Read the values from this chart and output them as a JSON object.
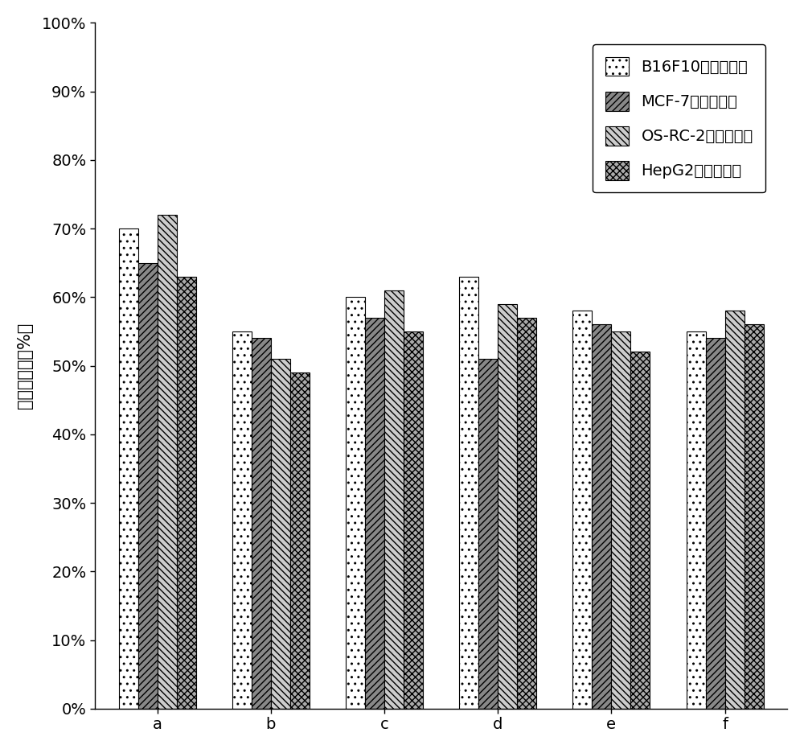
{
  "categories": [
    "a",
    "b",
    "c",
    "d",
    "e",
    "f"
  ],
  "series": [
    {
      "label": "B16F10细胞存活率",
      "values": [
        0.7,
        0.55,
        0.6,
        0.63,
        0.58,
        0.55
      ],
      "hatch": "..",
      "facecolor": "white",
      "edgecolor": "black"
    },
    {
      "label": "MCF-7细胞存活率",
      "values": [
        0.65,
        0.54,
        0.57,
        0.51,
        0.56,
        0.54
      ],
      "hatch": "////",
      "facecolor": "#888888",
      "edgecolor": "black"
    },
    {
      "label": "OS-RC-2细胞存活率",
      "values": [
        0.72,
        0.51,
        0.61,
        0.59,
        0.55,
        0.58
      ],
      "hatch": "\\\\\\\\",
      "facecolor": "#cccccc",
      "edgecolor": "black"
    },
    {
      "label": "HepG2细胞存活率",
      "values": [
        0.63,
        0.49,
        0.55,
        0.57,
        0.52,
        0.56
      ],
      "hatch": "xxxx",
      "facecolor": "#aaaaaa",
      "edgecolor": "black"
    }
  ],
  "ylabel": "细胞存活率（%）",
  "ylim": [
    0,
    1.0
  ],
  "yticks": [
    0.0,
    0.1,
    0.2,
    0.3,
    0.4,
    0.5,
    0.6,
    0.7,
    0.8,
    0.9,
    1.0
  ],
  "ytick_labels": [
    "0%",
    "10%",
    "20%",
    "30%",
    "40%",
    "50%",
    "60%",
    "70%",
    "80%",
    "90%",
    "100%"
  ],
  "bar_width": 0.17,
  "background_color": "white",
  "legend_fontsize": 14,
  "axis_fontsize": 15,
  "tick_fontsize": 14
}
